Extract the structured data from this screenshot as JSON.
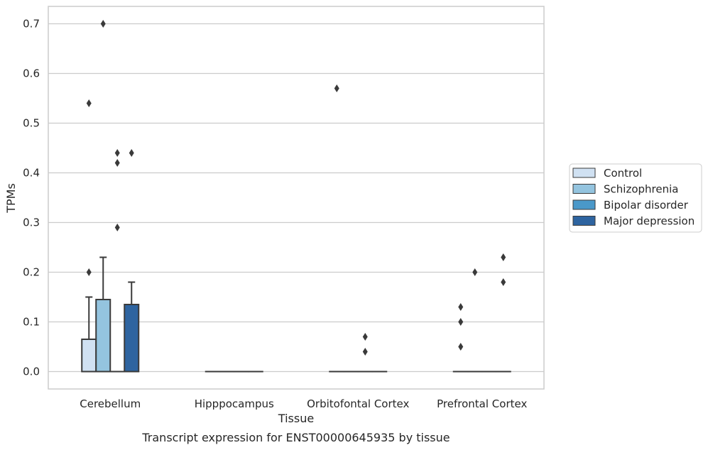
{
  "chart_data": {
    "type": "boxplot",
    "ylabel": "TPMs",
    "xlabel": "Tissue",
    "caption": "Transcript expression for ENST00000645935 by tissue",
    "ylim": [
      -0.035,
      0.735
    ],
    "yticks": [
      0.0,
      0.1,
      0.2,
      0.3,
      0.4,
      0.5,
      0.6,
      0.7
    ],
    "ytick_labels": [
      "0.0",
      "0.1",
      "0.2",
      "0.3",
      "0.4",
      "0.5",
      "0.6",
      "0.7"
    ],
    "grid": "horizontal",
    "legend_position": "right",
    "categories": [
      "Cerebellum",
      "Hipppocampus",
      "Orbitofontal Cortex",
      "Prefrontal Cortex"
    ],
    "series": [
      {
        "name": "Control",
        "color": "#d0e1f2",
        "boxes": [
          {
            "q1": 0.0,
            "median": 0.0,
            "q3": 0.065,
            "whisker_low": 0.0,
            "whisker_high": 0.15,
            "outliers": [
              0.2,
              0.54
            ]
          },
          {
            "q1": 0.0,
            "median": 0.0,
            "q3": 0.0,
            "whisker_low": 0.0,
            "whisker_high": 0.0,
            "outliers": []
          },
          {
            "q1": 0.0,
            "median": 0.0,
            "q3": 0.0,
            "whisker_low": 0.0,
            "whisker_high": 0.0,
            "outliers": [
              0.57
            ]
          },
          {
            "q1": 0.0,
            "median": 0.0,
            "q3": 0.0,
            "whisker_low": 0.0,
            "whisker_high": 0.0,
            "outliers": [
              0.05,
              0.1,
              0.13
            ]
          }
        ]
      },
      {
        "name": "Schizophrenia",
        "color": "#94c4df",
        "boxes": [
          {
            "q1": 0.0,
            "median": 0.0,
            "q3": 0.145,
            "whisker_low": 0.0,
            "whisker_high": 0.23,
            "outliers": [
              0.7
            ]
          },
          {
            "q1": 0.0,
            "median": 0.0,
            "q3": 0.0,
            "whisker_low": 0.0,
            "whisker_high": 0.0,
            "outliers": []
          },
          {
            "q1": 0.0,
            "median": 0.0,
            "q3": 0.0,
            "whisker_low": 0.0,
            "whisker_high": 0.0,
            "outliers": []
          },
          {
            "q1": 0.0,
            "median": 0.0,
            "q3": 0.0,
            "whisker_low": 0.0,
            "whisker_high": 0.0,
            "outliers": [
              0.2
            ]
          }
        ]
      },
      {
        "name": "Bipolar disorder",
        "color": "#4a98c9",
        "boxes": [
          {
            "q1": 0.0,
            "median": 0.0,
            "q3": 0.0,
            "whisker_low": 0.0,
            "whisker_high": 0.0,
            "outliers": [
              0.29,
              0.42,
              0.44
            ]
          },
          {
            "q1": 0.0,
            "median": 0.0,
            "q3": 0.0,
            "whisker_low": 0.0,
            "whisker_high": 0.0,
            "outliers": []
          },
          {
            "q1": 0.0,
            "median": 0.0,
            "q3": 0.0,
            "whisker_low": 0.0,
            "whisker_high": 0.0,
            "outliers": [
              0.04,
              0.07
            ]
          },
          {
            "q1": 0.0,
            "median": 0.0,
            "q3": 0.0,
            "whisker_low": 0.0,
            "whisker_high": 0.0,
            "outliers": []
          }
        ]
      },
      {
        "name": "Major depression",
        "color": "#2e64a0",
        "boxes": [
          {
            "q1": 0.0,
            "median": 0.0,
            "q3": 0.135,
            "whisker_low": 0.0,
            "whisker_high": 0.18,
            "outliers": [
              0.44
            ]
          },
          {
            "q1": 0.0,
            "median": 0.0,
            "q3": 0.0,
            "whisker_low": 0.0,
            "whisker_high": 0.0,
            "outliers": []
          },
          {
            "q1": 0.0,
            "median": 0.0,
            "q3": 0.0,
            "whisker_low": 0.0,
            "whisker_high": 0.0,
            "outliers": []
          },
          {
            "q1": 0.0,
            "median": 0.0,
            "q3": 0.0,
            "whisker_low": 0.0,
            "whisker_high": 0.0,
            "outliers": [
              0.18,
              0.23
            ]
          }
        ]
      }
    ]
  },
  "colors": {
    "background": "#ffffff",
    "grid": "#cccccc",
    "box_edge": "#3a3a3a",
    "text": "#262626"
  }
}
